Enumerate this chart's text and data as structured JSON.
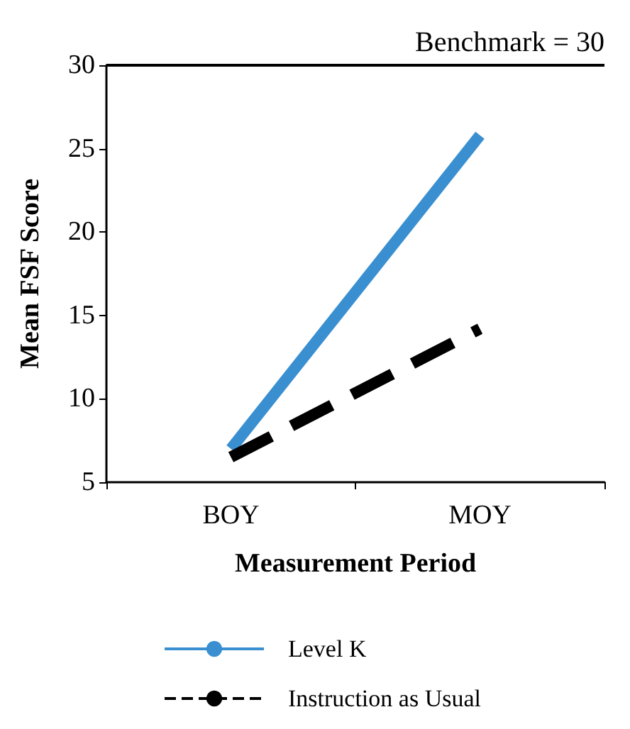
{
  "chart_data": {
    "type": "line",
    "xlabel": "Measurement Period",
    "ylabel": "Mean FSF Score",
    "categories": [
      "BOY",
      "MOY"
    ],
    "series": [
      {
        "name": "Level K",
        "color": "#3a8fd0",
        "values": [
          7,
          25.8
        ],
        "line_style": "solid"
      },
      {
        "name": "Instruction as Usual",
        "color": "#000000",
        "values": [
          6.5,
          14.2
        ],
        "line_style": "dashed"
      }
    ],
    "ylim": [
      5,
      30
    ],
    "yticks": [
      5,
      10,
      15,
      20,
      25,
      30
    ],
    "ref_lines": [
      {
        "axis": "y",
        "value": 30,
        "label": "Benchmark = 30",
        "color": "#000000"
      }
    ],
    "grid": false,
    "legend": "bottom",
    "marker": "none"
  }
}
